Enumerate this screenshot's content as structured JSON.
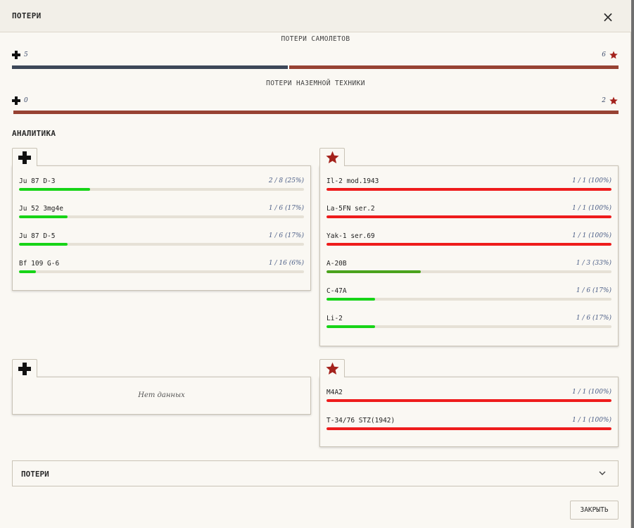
{
  "dialog": {
    "title": "ПОТЕРИ",
    "close_icon": "×"
  },
  "aircraft_losses": {
    "title": "ПОТЕРИ САМОЛЕТОВ",
    "left_count": "5",
    "right_count": "6",
    "left_value": 5,
    "right_value": 6
  },
  "ground_losses": {
    "title": "ПОТЕРИ НАЗЕМНОЙ ТЕХНИКИ",
    "left_count": "0",
    "right_count": "2",
    "left_value": 0,
    "right_value": 2
  },
  "analytics": {
    "title": "АНАЛИТИКА",
    "axis_aircraft": [
      {
        "name": "Ju 87 D-3",
        "stat": "2 / 8 (25%)",
        "pct": 25
      },
      {
        "name": "Ju 52 3mg4e",
        "stat": "1 / 6 (17%)",
        "pct": 17
      },
      {
        "name": "Ju 87 D-5",
        "stat": "1 / 6 (17%)",
        "pct": 17
      },
      {
        "name": "Bf 109 G-6",
        "stat": "1 / 16 (6%)",
        "pct": 6
      }
    ],
    "allied_aircraft": [
      {
        "name": "Il-2 mod.1943",
        "stat": "1 / 1 (100%)",
        "pct": 100
      },
      {
        "name": "La-5FN ser.2",
        "stat": "1 / 1 (100%)",
        "pct": 100
      },
      {
        "name": "Yak-1 ser.69",
        "stat": "1 / 1 (100%)",
        "pct": 100
      },
      {
        "name": "A-20B",
        "stat": "1 / 3 (33%)",
        "pct": 33
      },
      {
        "name": "C-47A",
        "stat": "1 / 6 (17%)",
        "pct": 17
      },
      {
        "name": "Li-2",
        "stat": "1 / 6 (17%)",
        "pct": 17
      }
    ],
    "axis_ground_empty": "Нет данных",
    "allied_ground": [
      {
        "name": "M4A2",
        "stat": "1 / 1 (100%)",
        "pct": 100
      },
      {
        "name": "T-34/76 STZ(1942)",
        "stat": "1 / 1 (100%)",
        "pct": 100
      }
    ]
  },
  "accordion": {
    "label": "ПОТЕРИ"
  },
  "footer": {
    "close_label": "ЗАКРЫТЬ"
  },
  "icons": {
    "axis": "cross-icon",
    "allied": "star-icon"
  },
  "colors": {
    "axis_bar": "#3c4758",
    "allied_bar": "#974233",
    "star": "#a4221c",
    "fill_red": "#ee1c1c",
    "fill_olive": "#4aa31c",
    "fill_green": "#17d417"
  }
}
